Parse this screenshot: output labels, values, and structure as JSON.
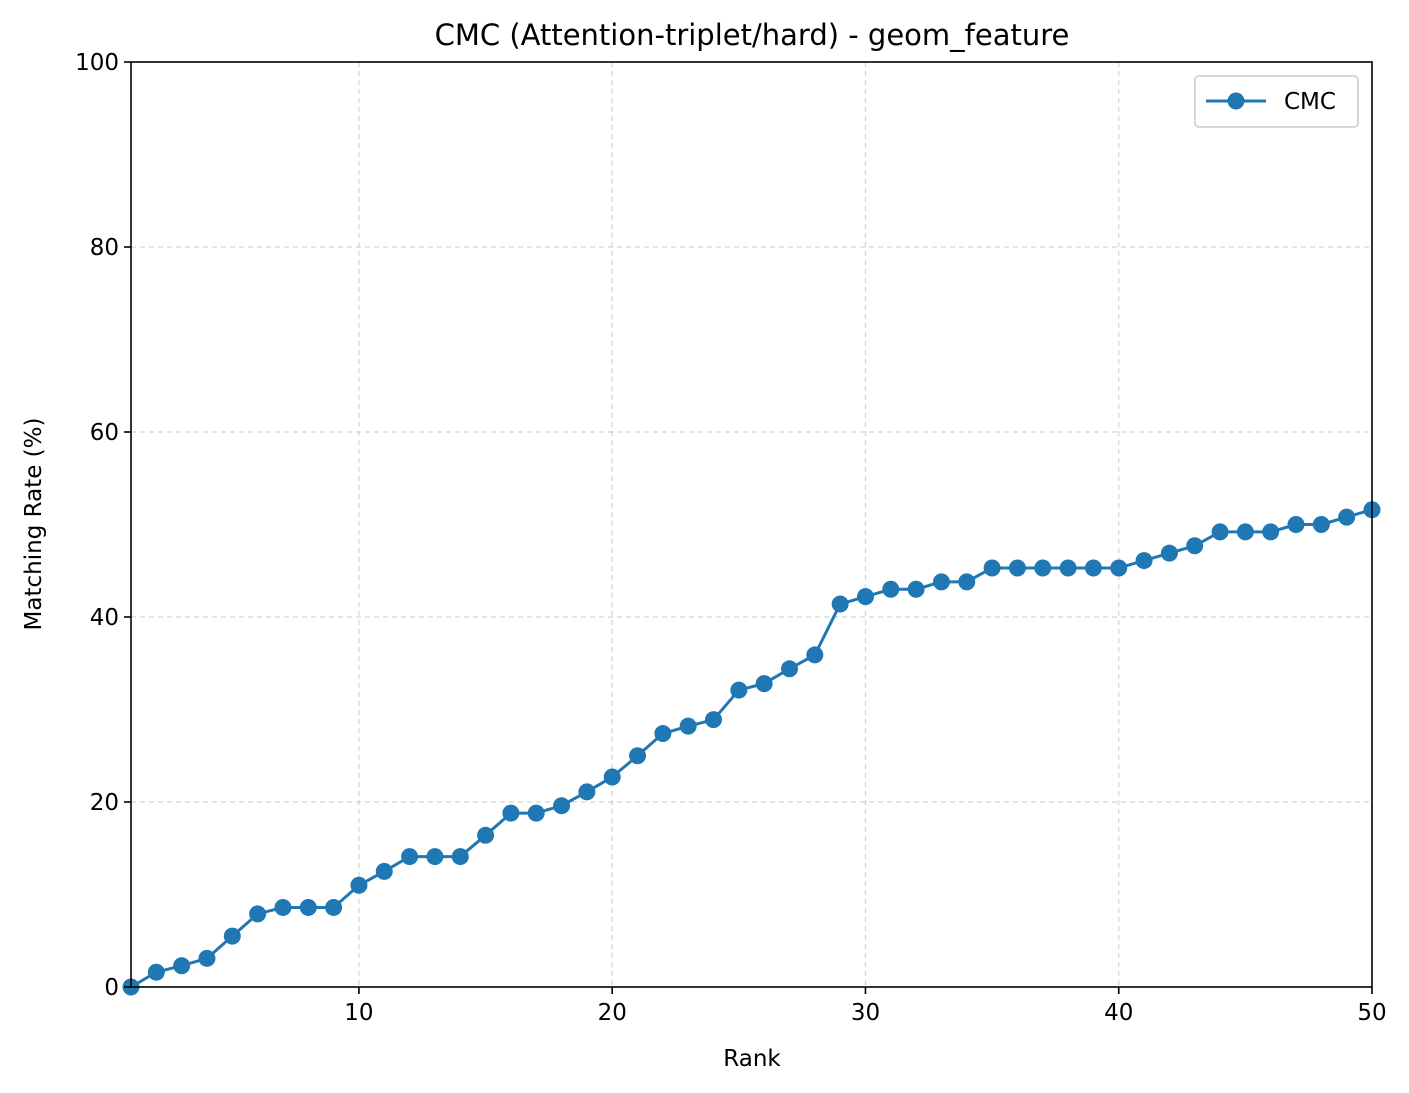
{
  "chart_data": {
    "type": "line",
    "title": "CMC (Attention-triplet/hard) - geom_feature",
    "xlabel": "Rank",
    "ylabel": "Matching Rate (%)",
    "xlim": [
      1,
      50
    ],
    "ylim": [
      0,
      100
    ],
    "xticks": [
      10,
      20,
      30,
      40,
      50
    ],
    "yticks": [
      0,
      20,
      40,
      60,
      80,
      100
    ],
    "grid": true,
    "legend_position": "top-right",
    "series": [
      {
        "name": "CMC",
        "color": "#1f77b4",
        "marker": "circle",
        "x": [
          1,
          2,
          3,
          4,
          5,
          6,
          7,
          8,
          9,
          10,
          11,
          12,
          13,
          14,
          15,
          16,
          17,
          18,
          19,
          20,
          21,
          22,
          23,
          24,
          25,
          26,
          27,
          28,
          29,
          30,
          31,
          32,
          33,
          34,
          35,
          36,
          37,
          38,
          39,
          40,
          41,
          42,
          43,
          44,
          45,
          46,
          47,
          48,
          49,
          50
        ],
        "values": [
          0.0,
          1.6,
          2.3,
          3.1,
          5.5,
          7.9,
          8.6,
          8.6,
          8.6,
          11.0,
          12.5,
          14.1,
          14.1,
          14.1,
          16.4,
          18.8,
          18.8,
          19.6,
          21.1,
          22.7,
          25.0,
          27.4,
          28.2,
          28.9,
          32.1,
          32.8,
          34.4,
          35.9,
          41.4,
          42.2,
          43.0,
          43.0,
          43.8,
          43.8,
          45.3,
          45.3,
          45.3,
          45.3,
          45.3,
          45.3,
          46.1,
          46.9,
          47.7,
          49.2,
          49.2,
          49.2,
          50.0,
          50.0,
          50.8,
          51.6
        ]
      }
    ]
  }
}
